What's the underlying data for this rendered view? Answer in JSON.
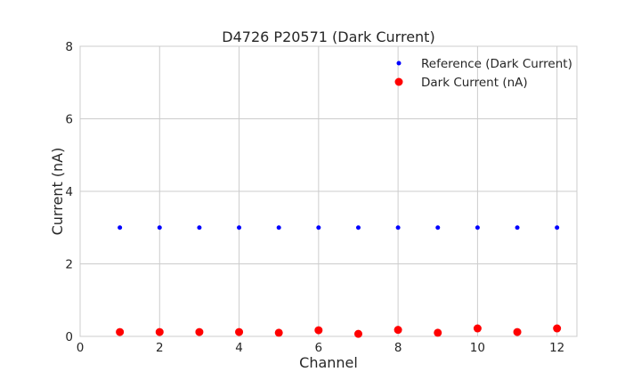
{
  "chart_data": {
    "type": "scatter",
    "title": "D4726 P20571 (Dark Current)",
    "xlabel": "Channel",
    "ylabel": "Current (nA)",
    "xlim": [
      0,
      12.5
    ],
    "ylim": [
      0,
      8
    ],
    "xticks": [
      0,
      2,
      4,
      6,
      8,
      10,
      12
    ],
    "yticks": [
      0,
      2,
      4,
      6,
      8
    ],
    "grid": true,
    "legend_position": "top-right",
    "x": [
      1,
      2,
      3,
      4,
      5,
      6,
      7,
      8,
      9,
      10,
      11,
      12
    ],
    "series": [
      {
        "name": "Reference (Dark Current)",
        "color": "#0000ff",
        "marker": "small-dot",
        "values": [
          3,
          3,
          3,
          3,
          3,
          3,
          3,
          3,
          3,
          3,
          3,
          3
        ]
      },
      {
        "name": "Dark Current (nA)",
        "color": "#ff0000",
        "marker": "large-dot",
        "values": [
          0.12,
          0.12,
          0.12,
          0.12,
          0.1,
          0.17,
          0.07,
          0.18,
          0.1,
          0.22,
          0.12,
          0.22
        ]
      }
    ]
  }
}
